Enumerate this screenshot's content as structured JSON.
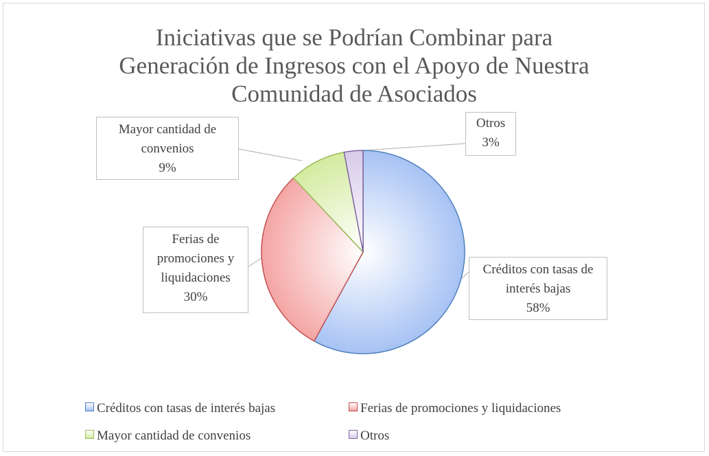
{
  "chart_data": {
    "type": "pie",
    "title": "Iniciativas que se Podrían Combinar para Generación de Ingresos con el Apoyo de Nuestra Comunidad de Asociados",
    "categories": [
      "Créditos con tasas de interés bajas",
      "Ferias de promociones y liquidaciones",
      "Mayor cantidad de convenios",
      "Otros"
    ],
    "values": [
      58,
      30,
      9,
      3
    ],
    "value_labels": [
      "58%",
      "30%",
      "9%",
      "3%"
    ],
    "colors": [
      "#a7c2f4",
      "#f4a5a4",
      "#d3eb9f",
      "#d7cbe9"
    ],
    "edge_colors": [
      "#4f81bd",
      "#c0504d",
      "#9bbb59",
      "#8064a2"
    ],
    "legend": "bottom"
  }
}
